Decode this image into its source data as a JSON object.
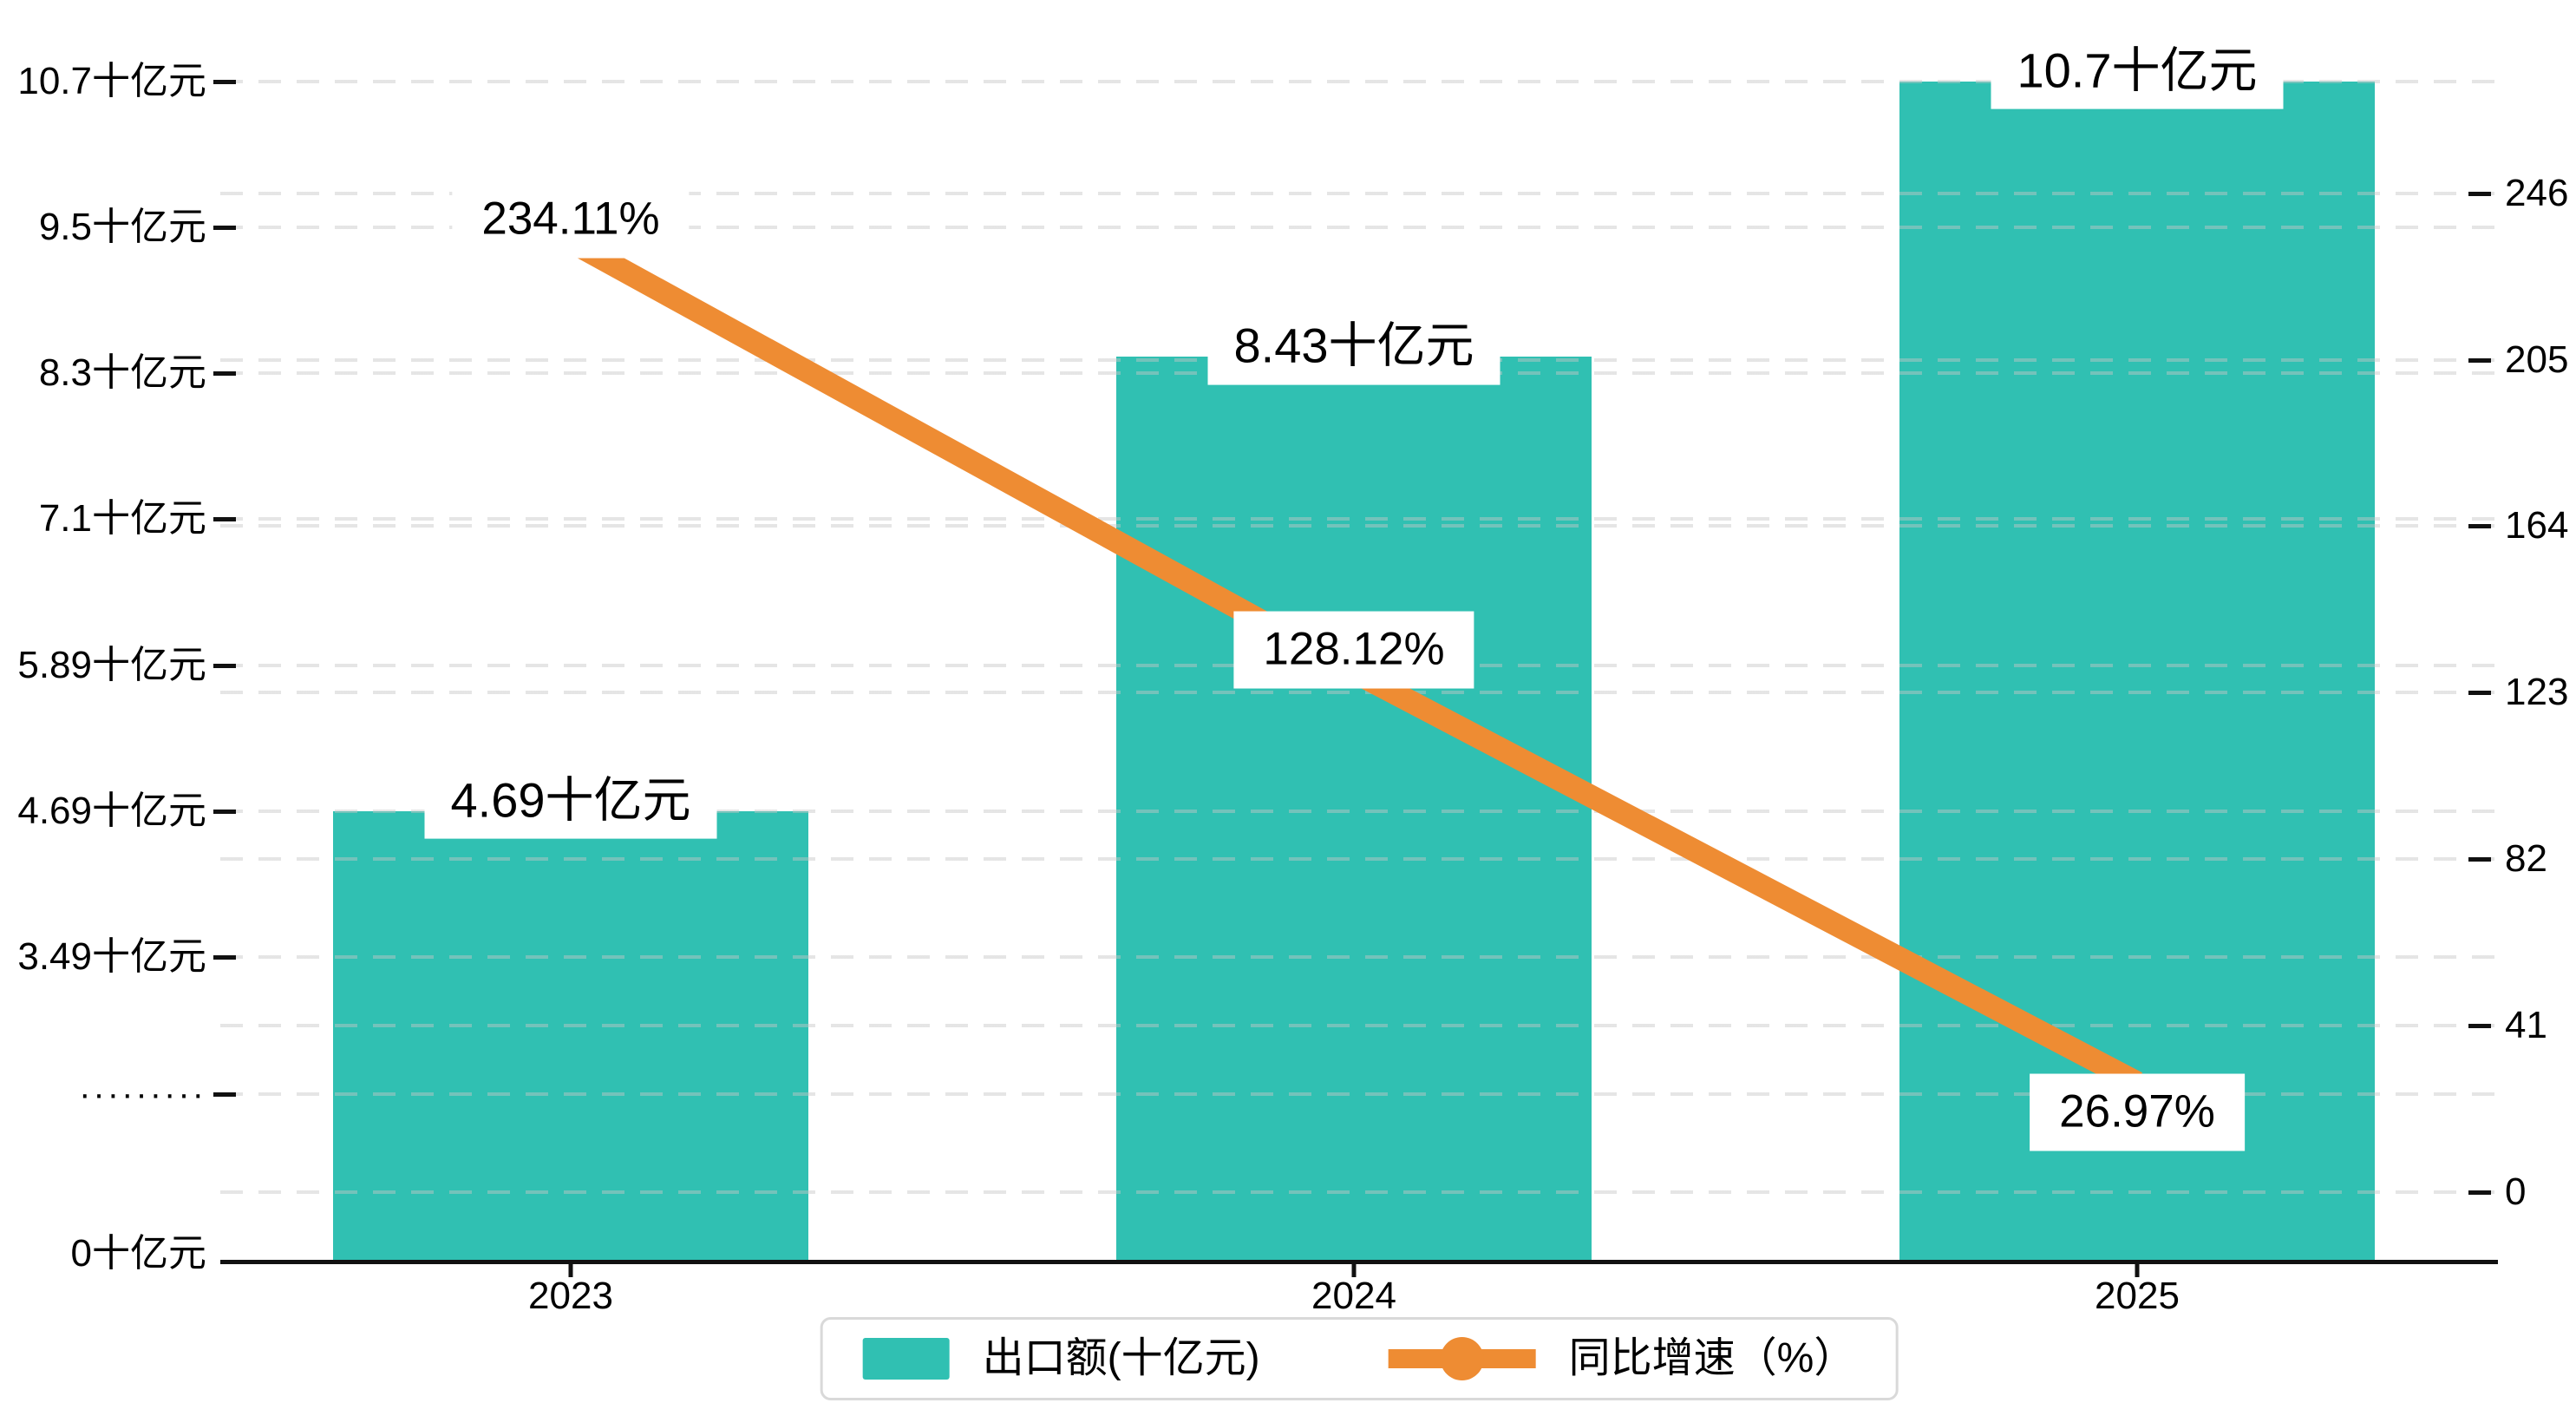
{
  "chart_data": {
    "type": "bar+line",
    "categories": [
      "2023",
      "2024",
      "2025"
    ],
    "series": [
      {
        "name": "出口额(十亿元)",
        "type": "bar",
        "values": [
          4.69,
          8.43,
          10.7
        ],
        "labels": [
          "4.69十亿元",
          "8.43十亿元",
          "10.7十亿元"
        ],
        "color": "#30c0b2"
      },
      {
        "name": "同比增速（%）",
        "type": "line",
        "values": [
          234.11,
          128.12,
          26.97
        ],
        "labels": [
          "234.11%",
          "128.12%",
          "26.97%"
        ],
        "color": "#ee8c33"
      }
    ],
    "left_axis": {
      "ticks": [
        {
          "label": "10.7十亿元",
          "value": 10.7
        },
        {
          "label": "9.5十亿元",
          "value": 9.5
        },
        {
          "label": "8.3十亿元",
          "value": 8.3
        },
        {
          "label": "7.1十亿元",
          "value": 7.1
        },
        {
          "label": "5.89十亿元",
          "value": 5.89
        },
        {
          "label": "4.69十亿元",
          "value": 4.69
        },
        {
          "label": "3.49十亿元",
          "value": 3.49
        },
        {
          "label": "·········",
          "value": null,
          "special": "break"
        },
        {
          "label": "0十亿元",
          "value": 0,
          "special": "zero"
        }
      ],
      "unit": "十亿元"
    },
    "right_axis": {
      "ticks": [
        {
          "label": "246",
          "value": 246
        },
        {
          "label": "205",
          "value": 205
        },
        {
          "label": "164",
          "value": 164
        },
        {
          "label": "123",
          "value": 123
        },
        {
          "label": "82",
          "value": 82
        },
        {
          "label": "41",
          "value": 41
        },
        {
          "label": "0",
          "value": 0
        }
      ],
      "range": [
        0,
        246
      ]
    },
    "legend": {
      "position": "bottom-center",
      "items": [
        "出口额(十亿元)",
        "同比增速（%）"
      ]
    },
    "grid": "dashed-horizontal",
    "title": "",
    "xlabel": "",
    "ylabel": ""
  }
}
